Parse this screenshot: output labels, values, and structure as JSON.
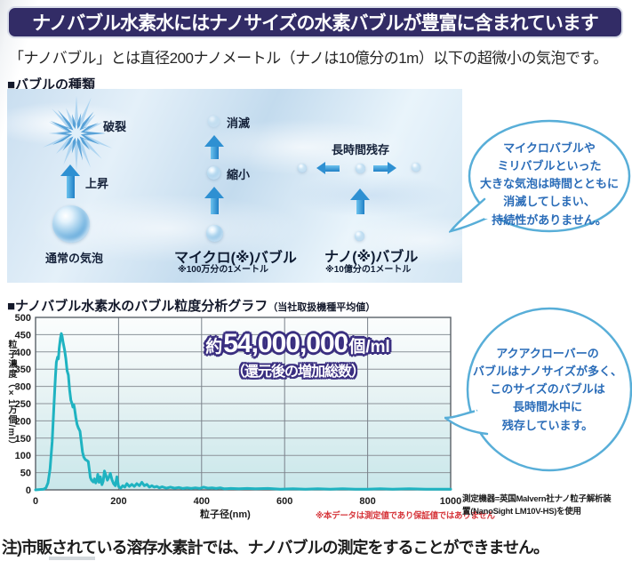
{
  "title_banner": "ナノバブル水素水にはナノサイズの水素バブルが豊富に含まれています",
  "subtitle": "「ナノバブル」とは直径200ナノメートル（ナノは10億分の1m）以下の超微小の気泡です。",
  "section1": {
    "heading": "■バブルの種類"
  },
  "diagram": {
    "burst": "破裂",
    "rise": "上昇",
    "normal_bubble": "通常の気泡",
    "vanish": "消滅",
    "shrink": "縮小",
    "micro_label": "マイクロ(※)バブル",
    "micro_note": "※100万分の1メートル",
    "persist": "長時間残存",
    "nano_label": "ナノ(※)バブル",
    "nano_note": "※10億分の1メートル"
  },
  "bubble1_lines": [
    "マイクロバブルや",
    "ミリバブルといった",
    "大きな気泡は時間とともに",
    "消滅してしまい、",
    "持続性がありません。"
  ],
  "bubble2_lines": [
    "アクアクローバーの",
    "バブルはナノサイズが多く、",
    "このサイズのバブルは",
    "長時間水中に",
    "残存しています。"
  ],
  "section2": {
    "heading": "■ナノバブル水素水のバブル粒度分析グラフ",
    "heading_sub": "（当社取扱機種平均値）"
  },
  "annotation": {
    "prefix": "約",
    "number": "54,000,000",
    "unit": "個/ml",
    "line2": "（還元後の増加総数）"
  },
  "notes": {
    "data_note": "※本データは測定値であり保証値ではありません",
    "equipment1": "測定機器=英国Malvern社ナノ粒子解析装",
    "equipment2": "置(NanoSight LM10V-HS)を使用"
  },
  "footer_note": "注)市販されている溶存水素計では、ナノバブルの測定をすることができません。",
  "colors": {
    "banner_bg": "#322c66",
    "chart_line": "#1fb3c1",
    "speech_text": "#2a6cb8",
    "speech_border": "#58aed8",
    "red_note": "#d6363b",
    "annotation_outline": "#3a2f80"
  },
  "chart_data": {
    "type": "line",
    "title": "ナノバブル水素水のバブル粒度分析グラフ（当社取扱機種平均値）",
    "xlabel": "粒子径(nm)",
    "ylabel": "粒子濃度（×1万個/ml）",
    "xlim": [
      0,
      1000
    ],
    "ylim": [
      0,
      500
    ],
    "x_ticks": [
      0,
      200,
      400,
      600,
      800,
      1000
    ],
    "y_ticks": [
      0,
      50,
      100,
      150,
      200,
      250,
      300,
      350,
      400,
      450,
      500
    ],
    "grid": true,
    "legend": "none",
    "line_color": "#1fb3c1",
    "points": [
      [
        0,
        0
      ],
      [
        20,
        2
      ],
      [
        25,
        6
      ],
      [
        30,
        20
      ],
      [
        35,
        60
      ],
      [
        40,
        140
      ],
      [
        45,
        260
      ],
      [
        48,
        330
      ],
      [
        50,
        370
      ],
      [
        53,
        385
      ],
      [
        55,
        380
      ],
      [
        57,
        410
      ],
      [
        60,
        440
      ],
      [
        62,
        453
      ],
      [
        64,
        445
      ],
      [
        66,
        430
      ],
      [
        70,
        405
      ],
      [
        73,
        380
      ],
      [
        76,
        345
      ],
      [
        79,
        333
      ],
      [
        82,
        290
      ],
      [
        85,
        260
      ],
      [
        88,
        250
      ],
      [
        90,
        240
      ],
      [
        92,
        247
      ],
      [
        94,
        235
      ],
      [
        97,
        210
      ],
      [
        100,
        190
      ],
      [
        103,
        180
      ],
      [
        107,
        170
      ],
      [
        110,
        140
      ],
      [
        113,
        110
      ],
      [
        116,
        95
      ],
      [
        120,
        88
      ],
      [
        124,
        85
      ],
      [
        127,
        82
      ],
      [
        130,
        55
      ],
      [
        132,
        36
      ],
      [
        135,
        28
      ],
      [
        139,
        23
      ],
      [
        142,
        32
      ],
      [
        145,
        20
      ],
      [
        148,
        28
      ],
      [
        150,
        45
      ],
      [
        153,
        22
      ],
      [
        156,
        38
      ],
      [
        160,
        15
      ],
      [
        163,
        25
      ],
      [
        166,
        55
      ],
      [
        170,
        40
      ],
      [
        173,
        28
      ],
      [
        176,
        35
      ],
      [
        180,
        48
      ],
      [
        184,
        30
      ],
      [
        188,
        18
      ],
      [
        192,
        12
      ],
      [
        196,
        38
      ],
      [
        200,
        10
      ],
      [
        205,
        5
      ],
      [
        210,
        12
      ],
      [
        215,
        8
      ],
      [
        220,
        18
      ],
      [
        226,
        10
      ],
      [
        232,
        16
      ],
      [
        238,
        10
      ],
      [
        244,
        18
      ],
      [
        250,
        12
      ],
      [
        256,
        22
      ],
      [
        262,
        12
      ],
      [
        268,
        16
      ],
      [
        274,
        8
      ],
      [
        280,
        12
      ],
      [
        286,
        8
      ],
      [
        292,
        10
      ],
      [
        298,
        6
      ],
      [
        305,
        9
      ],
      [
        315,
        5
      ],
      [
        325,
        8
      ],
      [
        335,
        5
      ],
      [
        345,
        7
      ],
      [
        355,
        4
      ],
      [
        365,
        6
      ],
      [
        375,
        4
      ],
      [
        385,
        6
      ],
      [
        395,
        4
      ],
      [
        405,
        8
      ],
      [
        415,
        5
      ],
      [
        425,
        6
      ],
      [
        435,
        4
      ],
      [
        445,
        6
      ],
      [
        455,
        3
      ],
      [
        470,
        4
      ],
      [
        490,
        3
      ],
      [
        510,
        4
      ],
      [
        530,
        3
      ],
      [
        560,
        4
      ],
      [
        590,
        2
      ],
      [
        620,
        3
      ],
      [
        650,
        2
      ],
      [
        680,
        3
      ],
      [
        710,
        2
      ],
      [
        740,
        3
      ],
      [
        770,
        2
      ],
      [
        800,
        2
      ],
      [
        830,
        3
      ],
      [
        860,
        2
      ],
      [
        900,
        3
      ],
      [
        940,
        2
      ],
      [
        970,
        2
      ],
      [
        1000,
        2
      ]
    ]
  }
}
